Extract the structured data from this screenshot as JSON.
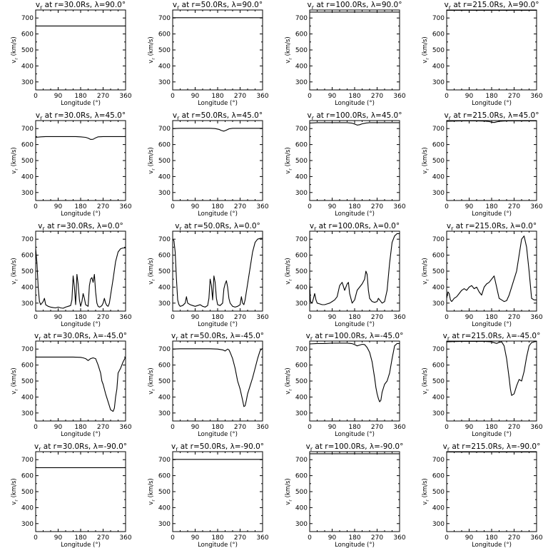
{
  "chart_data": [
    {
      "type": "line",
      "title": "v<sub>r</sub> at r=30.0Rs, λ=90.0°",
      "xlabel": "Longitude (°)",
      "ylabel": "v<sub>r</sub> (km/s)",
      "xlim": [
        0,
        360
      ],
      "ylim": [
        250,
        750
      ],
      "xticks": [
        0,
        90,
        180,
        270,
        360
      ],
      "yticks": [
        300,
        400,
        500,
        600,
        700
      ],
      "x": [
        0,
        360
      ],
      "y": [
        650,
        650
      ]
    },
    {
      "type": "line",
      "title": "v<sub>r</sub> at r=50.0Rs, λ=90.0°",
      "xlabel": "Longitude (°)",
      "ylabel": "v<sub>r</sub> (km/s)",
      "xlim": [
        0,
        360
      ],
      "ylim": [
        250,
        750
      ],
      "xticks": [
        0,
        90,
        180,
        270,
        360
      ],
      "yticks": [
        300,
        400,
        500,
        600,
        700
      ],
      "x": [
        0,
        360
      ],
      "y": [
        702,
        702
      ]
    },
    {
      "type": "line",
      "title": "v<sub>r</sub> at r=100.0Rs, λ=90.0°",
      "xlabel": "Longitude (°)",
      "ylabel": "v<sub>r</sub> (km/s)",
      "xlim": [
        0,
        360
      ],
      "ylim": [
        250,
        750
      ],
      "xticks": [
        0,
        90,
        180,
        270,
        360
      ],
      "yticks": [
        300,
        400,
        500,
        600,
        700
      ],
      "x": [
        0,
        360
      ],
      "y": [
        737,
        737
      ]
    },
    {
      "type": "line",
      "title": "v<sub>r</sub> at r=215.0Rs, λ=90.0°",
      "xlabel": "Longitude (°)",
      "ylabel": "v<sub>r</sub> (km/s)",
      "xlim": [
        0,
        360
      ],
      "ylim": [
        250,
        750
      ],
      "xticks": [
        0,
        90,
        180,
        270,
        360
      ],
      "yticks": [
        300,
        400,
        500,
        600,
        700
      ],
      "x": [
        0,
        360
      ],
      "y": [
        748,
        748
      ]
    },
    {
      "type": "line",
      "title": "v<sub>r</sub> at r=30.0Rs, λ=45.0°",
      "xlabel": "Longitude (°)",
      "ylabel": "v<sub>r</sub> (km/s)",
      "xlim": [
        0,
        360
      ],
      "ylim": [
        250,
        750
      ],
      "xticks": [
        0,
        90,
        180,
        270,
        360
      ],
      "yticks": [
        300,
        400,
        500,
        600,
        700
      ],
      "x": [
        0,
        20,
        40,
        60,
        80,
        100,
        120,
        140,
        160,
        180,
        200,
        210,
        220,
        230,
        240,
        250,
        270,
        300,
        330,
        360
      ],
      "y": [
        645,
        648,
        650,
        650,
        650,
        650,
        650,
        650,
        650,
        648,
        645,
        640,
        632,
        633,
        642,
        648,
        650,
        650,
        650,
        650
      ]
    },
    {
      "type": "line",
      "title": "v<sub>r</sub> at r=50.0Rs, λ=45.0°",
      "xlabel": "Longitude (°)",
      "ylabel": "v<sub>r</sub> (km/s)",
      "xlim": [
        0,
        360
      ],
      "ylim": [
        250,
        750
      ],
      "xticks": [
        0,
        90,
        180,
        270,
        360
      ],
      "yticks": [
        300,
        400,
        500,
        600,
        700
      ],
      "x": [
        0,
        30,
        60,
        90,
        120,
        150,
        170,
        185,
        195,
        205,
        215,
        225,
        240,
        270,
        300,
        330,
        360
      ],
      "y": [
        700,
        702,
        702,
        702,
        702,
        702,
        700,
        695,
        688,
        684,
        690,
        698,
        702,
        702,
        702,
        702,
        702
      ]
    },
    {
      "type": "line",
      "title": "v<sub>r</sub> at r=100.0Rs, λ=45.0°",
      "xlabel": "Longitude (°)",
      "ylabel": "v<sub>r</sub> (km/s)",
      "xlim": [
        0,
        360
      ],
      "ylim": [
        250,
        750
      ],
      "xticks": [
        0,
        90,
        180,
        270,
        360
      ],
      "yticks": [
        300,
        400,
        500,
        600,
        700
      ],
      "x": [
        0,
        30,
        60,
        90,
        120,
        150,
        170,
        180,
        190,
        200,
        210,
        225,
        240,
        270,
        300,
        330,
        360
      ],
      "y": [
        735,
        737,
        737,
        737,
        737,
        737,
        734,
        728,
        722,
        724,
        730,
        735,
        737,
        737,
        737,
        737,
        737
      ]
    },
    {
      "type": "line",
      "title": "v<sub>r</sub> at r=215.0Rs, λ=45.0°",
      "xlabel": "Longitude (°)",
      "ylabel": "v<sub>r</sub> (km/s)",
      "xlim": [
        0,
        360
      ],
      "ylim": [
        250,
        750
      ],
      "xticks": [
        0,
        90,
        180,
        270,
        360
      ],
      "yticks": [
        300,
        400,
        500,
        600,
        700
      ],
      "x": [
        0,
        60,
        120,
        150,
        170,
        180,
        190,
        200,
        210,
        225,
        240,
        300,
        360
      ],
      "y": [
        746,
        748,
        748,
        747,
        744,
        740,
        738,
        742,
        745,
        747,
        748,
        748,
        748
      ]
    },
    {
      "type": "line",
      "title": "v<sub>r</sub> at r=30.0Rs, λ=0.0°",
      "xlabel": "Longitude (°)",
      "ylabel": "v<sub>r</sub> (km/s)",
      "xlim": [
        0,
        360
      ],
      "ylim": [
        250,
        750
      ],
      "xticks": [
        0,
        90,
        180,
        270,
        360
      ],
      "yticks": [
        300,
        400,
        500,
        600,
        700
      ],
      "x": [
        0,
        5,
        10,
        15,
        20,
        25,
        30,
        35,
        40,
        50,
        60,
        70,
        80,
        90,
        100,
        110,
        120,
        130,
        140,
        145,
        150,
        155,
        160,
        165,
        170,
        175,
        180,
        185,
        190,
        195,
        200,
        210,
        215,
        220,
        225,
        230,
        235,
        240,
        245,
        250,
        255,
        260,
        265,
        270,
        275,
        280,
        285,
        290,
        295,
        300,
        310,
        320,
        330,
        340,
        350,
        360
      ],
      "y": [
        640,
        550,
        400,
        310,
        290,
        300,
        310,
        330,
        290,
        280,
        275,
        272,
        270,
        275,
        270,
        268,
        275,
        280,
        285,
        320,
        470,
        400,
        290,
        480,
        420,
        320,
        280,
        310,
        360,
        330,
        290,
        280,
        410,
        450,
        460,
        430,
        480,
        370,
        300,
        280,
        275,
        278,
        285,
        300,
        330,
        300,
        285,
        280,
        300,
        350,
        450,
        560,
        620,
        640,
        645,
        645
      ]
    },
    {
      "type": "line",
      "title": "v<sub>r</sub> at r=50.0Rs, λ=0.0°",
      "xlabel": "Longitude (°)",
      "ylabel": "v<sub>r</sub> (km/s)",
      "xlim": [
        0,
        360
      ],
      "ylim": [
        250,
        750
      ],
      "xticks": [
        0,
        90,
        180,
        270,
        360
      ],
      "yticks": [
        300,
        400,
        500,
        600,
        700
      ],
      "x": [
        0,
        5,
        10,
        15,
        20,
        25,
        30,
        40,
        50,
        55,
        60,
        70,
        80,
        90,
        100,
        110,
        120,
        130,
        140,
        145,
        150,
        155,
        160,
        165,
        170,
        175,
        180,
        190,
        200,
        205,
        210,
        215,
        220,
        225,
        230,
        240,
        250,
        260,
        270,
        275,
        280,
        285,
        290,
        300,
        310,
        320,
        330,
        340,
        350,
        360
      ],
      "y": [
        700,
        690,
        620,
        450,
        320,
        290,
        280,
        285,
        300,
        340,
        300,
        290,
        285,
        280,
        285,
        290,
        280,
        275,
        285,
        330,
        450,
        410,
        320,
        470,
        430,
        330,
        290,
        285,
        300,
        390,
        420,
        440,
        400,
        330,
        300,
        280,
        275,
        280,
        290,
        340,
        300,
        290,
        320,
        420,
        520,
        620,
        680,
        700,
        705,
        705
      ]
    },
    {
      "type": "line",
      "title": "v<sub>r</sub> at r=100.0Rs, λ=0.0°",
      "xlabel": "Longitude (°)",
      "ylabel": "v<sub>r</sub> (km/s)",
      "xlim": [
        0,
        360
      ],
      "ylim": [
        250,
        750
      ],
      "xticks": [
        0,
        90,
        180,
        270,
        360
      ],
      "yticks": [
        300,
        400,
        500,
        600,
        700
      ],
      "x": [
        0,
        3,
        10,
        15,
        20,
        25,
        30,
        40,
        50,
        60,
        70,
        80,
        90,
        100,
        110,
        120,
        130,
        140,
        150,
        155,
        160,
        170,
        180,
        190,
        200,
        210,
        220,
        225,
        230,
        235,
        240,
        250,
        260,
        270,
        275,
        280,
        290,
        300,
        310,
        320,
        330,
        340,
        350,
        360
      ],
      "y": [
        430,
        310,
        300,
        330,
        360,
        320,
        300,
        295,
        290,
        290,
        295,
        300,
        310,
        320,
        340,
        410,
        430,
        380,
        420,
        430,
        360,
        300,
        320,
        380,
        400,
        420,
        450,
        500,
        480,
        380,
        330,
        310,
        305,
        310,
        330,
        320,
        300,
        310,
        380,
        550,
        680,
        720,
        735,
        735
      ]
    },
    {
      "type": "line",
      "title": "v<sub>r</sub> at r=215.0Rs, λ=0.0°",
      "xlabel": "Longitude (°)",
      "ylabel": "v<sub>r</sub> (km/s)",
      "xlim": [
        0,
        360
      ],
      "ylim": [
        250,
        750
      ],
      "xticks": [
        0,
        90,
        180,
        270,
        360
      ],
      "yticks": [
        300,
        400,
        500,
        600,
        700
      ],
      "x": [
        0,
        5,
        10,
        15,
        20,
        25,
        30,
        40,
        50,
        60,
        70,
        80,
        90,
        100,
        110,
        120,
        130,
        140,
        150,
        160,
        170,
        180,
        190,
        200,
        210,
        220,
        230,
        240,
        250,
        260,
        270,
        280,
        290,
        300,
        310,
        320,
        330,
        340,
        350,
        360
      ],
      "y": [
        330,
        370,
        360,
        320,
        310,
        320,
        330,
        340,
        360,
        380,
        390,
        380,
        400,
        410,
        390,
        400,
        370,
        350,
        400,
        420,
        430,
        450,
        470,
        400,
        330,
        320,
        310,
        315,
        350,
        400,
        450,
        500,
        600,
        700,
        720,
        650,
        500,
        330,
        320,
        320
      ]
    },
    {
      "type": "line",
      "title": "v<sub>r</sub> at r=30.0Rs, λ=-45.0°",
      "xlabel": "Longitude (°)",
      "ylabel": "v<sub>r</sub> (km/s)",
      "xlim": [
        0,
        360
      ],
      "ylim": [
        250,
        750
      ],
      "xticks": [
        0,
        90,
        180,
        270,
        360
      ],
      "yticks": [
        300,
        400,
        500,
        600,
        700
      ],
      "x": [
        0,
        30,
        60,
        90,
        120,
        150,
        180,
        190,
        200,
        210,
        220,
        230,
        240,
        250,
        260,
        265,
        270,
        280,
        290,
        300,
        310,
        315,
        320,
        325,
        330,
        340,
        350,
        360
      ],
      "y": [
        650,
        650,
        650,
        650,
        650,
        650,
        648,
        645,
        640,
        628,
        640,
        645,
        640,
        600,
        550,
        500,
        480,
        420,
        370,
        320,
        310,
        330,
        400,
        450,
        550,
        580,
        620,
        650
      ]
    },
    {
      "type": "line",
      "title": "v<sub>r</sub> at r=50.0Rs, λ=-45.0°",
      "xlabel": "Longitude (°)",
      "ylabel": "v<sub>r</sub> (km/s)",
      "xlim": [
        0,
        360
      ],
      "ylim": [
        250,
        750
      ],
      "xticks": [
        0,
        90,
        180,
        270,
        360
      ],
      "yticks": [
        300,
        400,
        500,
        600,
        700
      ],
      "x": [
        0,
        30,
        60,
        90,
        120,
        150,
        180,
        200,
        210,
        215,
        220,
        225,
        230,
        240,
        250,
        260,
        270,
        280,
        285,
        290,
        295,
        300,
        310,
        320,
        330,
        340,
        350,
        360
      ],
      "y": [
        700,
        702,
        702,
        702,
        702,
        702,
        700,
        695,
        688,
        694,
        700,
        695,
        680,
        640,
        580,
        500,
        450,
        380,
        340,
        345,
        380,
        420,
        470,
        520,
        580,
        640,
        690,
        705
      ]
    },
    {
      "type": "line",
      "title": "v<sub>r</sub> at r=100.0Rs, λ=-45.0°",
      "xlabel": "Longitude (°)",
      "ylabel": "v<sub>r</sub> (km/s)",
      "xlim": [
        0,
        360
      ],
      "ylim": [
        250,
        750
      ],
      "xticks": [
        0,
        90,
        180,
        270,
        360
      ],
      "yticks": [
        300,
        400,
        500,
        600,
        700
      ],
      "x": [
        0,
        30,
        60,
        90,
        120,
        150,
        170,
        180,
        190,
        200,
        210,
        220,
        230,
        240,
        250,
        260,
        265,
        270,
        275,
        280,
        285,
        290,
        300,
        310,
        320,
        330,
        340,
        350,
        360
      ],
      "y": [
        732,
        735,
        735,
        737,
        737,
        737,
        734,
        728,
        720,
        725,
        730,
        728,
        710,
        680,
        620,
        520,
        460,
        420,
        390,
        370,
        380,
        430,
        480,
        500,
        550,
        640,
        720,
        735,
        735
      ]
    },
    {
      "type": "line",
      "title": "v<sub>r</sub> at r=215.0Rs, λ=-45.0°",
      "xlabel": "Longitude (°)",
      "ylabel": "v<sub>r</sub> (km/s)",
      "xlim": [
        0,
        360
      ],
      "ylim": [
        250,
        750
      ],
      "xticks": [
        0,
        90,
        180,
        270,
        360
      ],
      "yticks": [
        300,
        400,
        500,
        600,
        700
      ],
      "x": [
        0,
        30,
        60,
        90,
        120,
        150,
        180,
        190,
        200,
        210,
        220,
        230,
        240,
        250,
        255,
        260,
        270,
        280,
        290,
        300,
        310,
        320,
        330,
        340,
        350,
        360
      ],
      "y": [
        745,
        747,
        748,
        748,
        748,
        748,
        745,
        740,
        735,
        742,
        745,
        720,
        640,
        520,
        450,
        410,
        420,
        470,
        510,
        500,
        560,
        650,
        720,
        740,
        745,
        748
      ]
    },
    {
      "type": "line",
      "title": "v<sub>r</sub> at r=30.0Rs, λ=-90.0°",
      "xlabel": "Longitude (°)",
      "ylabel": "v<sub>r</sub> (km/s)",
      "xlim": [
        0,
        360
      ],
      "ylim": [
        250,
        750
      ],
      "xticks": [
        0,
        90,
        180,
        270,
        360
      ],
      "yticks": [
        300,
        400,
        500,
        600,
        700
      ],
      "x": [
        0,
        360
      ],
      "y": [
        650,
        650
      ]
    },
    {
      "type": "line",
      "title": "v<sub>r</sub> at r=50.0Rs, λ=-90.0°",
      "xlabel": "Longitude (°)",
      "ylabel": "v<sub>r</sub> (km/s)",
      "xlim": [
        0,
        360
      ],
      "ylim": [
        250,
        750
      ],
      "xticks": [
        0,
        90,
        180,
        270,
        360
      ],
      "yticks": [
        300,
        400,
        500,
        600,
        700
      ],
      "x": [
        0,
        360
      ],
      "y": [
        702,
        702
      ]
    },
    {
      "type": "line",
      "title": "v<sub>r</sub> at r=100.0Rs, λ=-90.0°",
      "xlabel": "Longitude (°)",
      "ylabel": "v<sub>r</sub> (km/s)",
      "xlim": [
        0,
        360
      ],
      "ylim": [
        250,
        750
      ],
      "xticks": [
        0,
        90,
        180,
        270,
        360
      ],
      "yticks": [
        300,
        400,
        500,
        600,
        700
      ],
      "x": [
        0,
        360
      ],
      "y": [
        737,
        737
      ]
    },
    {
      "type": "line",
      "title": "v<sub>r</sub> at r=215.0Rs, λ=-90.0°",
      "xlabel": "Longitude (°)",
      "ylabel": "v<sub>r</sub> (km/s)",
      "xlim": [
        0,
        360
      ],
      "ylim": [
        250,
        750
      ],
      "xticks": [
        0,
        90,
        180,
        270,
        360
      ],
      "yticks": [
        300,
        400,
        500,
        600,
        700
      ],
      "x": [
        0,
        360
      ],
      "y": [
        748,
        748
      ]
    }
  ]
}
